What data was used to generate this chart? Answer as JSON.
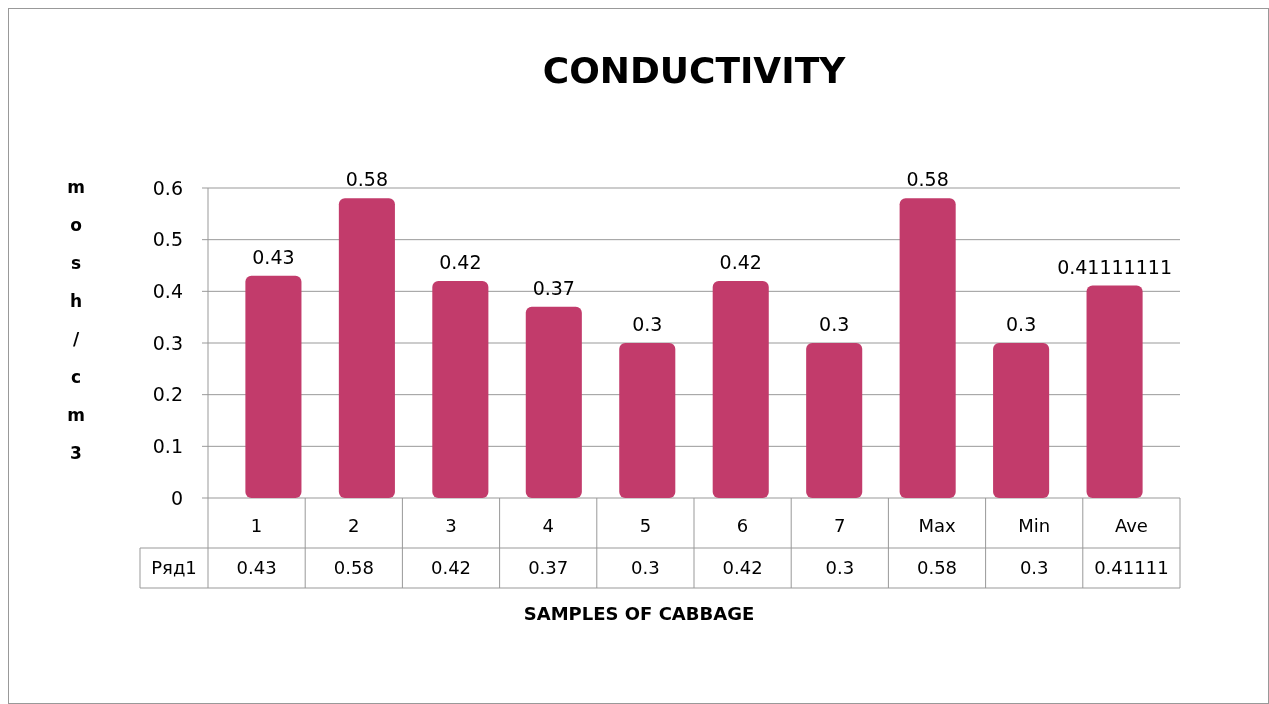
{
  "chart_data": {
    "type": "bar",
    "title": "CONDUCTIVITY",
    "xlabel": "SAMPLES OF CABBAGE",
    "ylabel": "mosh/cm3",
    "categories": [
      "1",
      "2",
      "3",
      "4",
      "5",
      "6",
      "7",
      "Max",
      "Min",
      "Ave"
    ],
    "series": [
      {
        "name": "Ряд1",
        "color": "#c23b6b",
        "values": [
          0.43,
          0.58,
          0.42,
          0.37,
          0.3,
          0.42,
          0.3,
          0.58,
          0.3,
          0.41111111
        ],
        "value_labels": [
          "0.43",
          "0.58",
          "0.42",
          "0.37",
          "0.3",
          "0.42",
          "0.3",
          "0.58",
          "0.3",
          "0.41111111"
        ]
      }
    ],
    "annotations": [
      "0.43",
      "0.58",
      "0.42",
      "0.37",
      "0.3",
      "0.42",
      "0.3",
      "0.58",
      "0.3",
      "0.41111"
    ],
    "ylim": [
      0,
      0.6
    ],
    "yticks": [
      0,
      0.1,
      0.2,
      0.3,
      0.4,
      0.5,
      0.6
    ],
    "grid": "y"
  }
}
